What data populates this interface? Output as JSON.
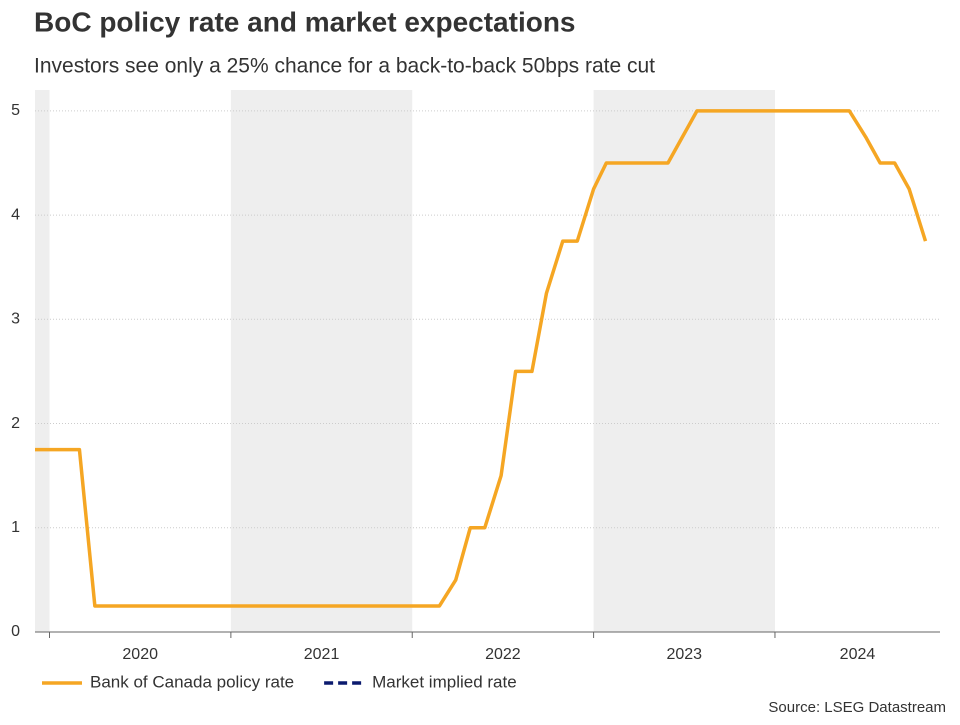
{
  "chart_data": {
    "type": "line",
    "title": "BoC policy rate and market expectations",
    "subtitle": "Investors see only a 25% chance for a back-to-back 50bps rate cut",
    "source": "Source: LSEG Datastream",
    "x": [
      2019.92,
      2020.165,
      2020.25,
      2022.15,
      2022.24,
      2022.32,
      2022.4,
      2022.49,
      2022.57,
      2022.66,
      2022.74,
      2022.83,
      2022.91,
      2023.0,
      2023.07,
      2023.41,
      2023.49,
      2023.57,
      2024.41,
      2024.5,
      2024.58,
      2024.66,
      2024.74,
      2024.83
    ],
    "series": [
      {
        "name": "Bank of Canada policy rate",
        "color": "#f5a623",
        "dashed": false,
        "values": [
          1.75,
          1.75,
          0.25,
          0.25,
          0.5,
          1.0,
          1.0,
          1.5,
          2.5,
          2.5,
          3.25,
          3.75,
          3.75,
          4.25,
          4.5,
          4.5,
          4.75,
          5.0,
          5.0,
          4.75,
          4.5,
          4.5,
          4.25,
          3.75
        ]
      },
      {
        "name": "Market implied rate",
        "color": "#0b1a6e",
        "dashed": true,
        "values": [
          null,
          null,
          null,
          null,
          null,
          null,
          null,
          null,
          null,
          null,
          null,
          null,
          null,
          null,
          null,
          null,
          null,
          null,
          null,
          null,
          null,
          null,
          null,
          null
        ]
      }
    ],
    "xlim": [
      2019.92,
      2024.91
    ],
    "xticks": [
      2020,
      2021,
      2022,
      2023,
      2024
    ],
    "ylim": [
      0,
      5.2
    ],
    "yticks": [
      0,
      1,
      2,
      3,
      4,
      5
    ],
    "shaded_years": [
      2019,
      2021,
      2023
    ],
    "shade_color": "#eeeeee",
    "grid": true,
    "legend": "bottom-left"
  }
}
